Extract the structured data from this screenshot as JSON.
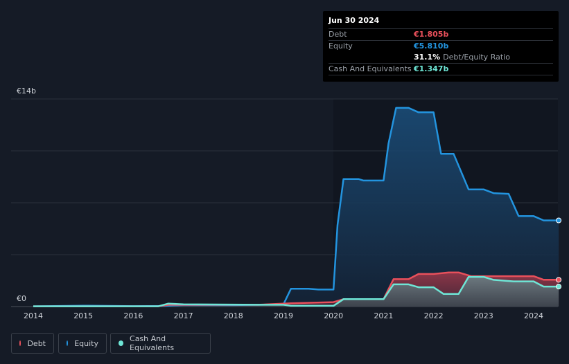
{
  "tooltip": {
    "date": "Jun 30 2024",
    "debt_label": "Debt",
    "debt_value": "€1.805b",
    "equity_label": "Equity",
    "equity_value": "€5.810b",
    "ratio_value": "31.1%",
    "ratio_label": "Debt/Equity Ratio",
    "cash_label": "Cash And Equivalents",
    "cash_value": "€1.347b"
  },
  "legend": {
    "debt": "Debt",
    "equity": "Equity",
    "cash": "Cash And Equivalents"
  },
  "colors": {
    "debt": "#e8505b",
    "equity": "#2394df",
    "cash": "#6ee6d6",
    "background": "#151b26"
  },
  "chart_data": {
    "type": "area",
    "y_axis_labels": [
      "€14b",
      "€0"
    ],
    "ylim": [
      0,
      14
    ],
    "y_unit": "€b",
    "x_ticks": [
      "2014",
      "2015",
      "2016",
      "2017",
      "2018",
      "2019",
      "2020",
      "2021",
      "2022",
      "2023",
      "2024"
    ],
    "xlim": [
      2014.0,
      2024.5
    ],
    "grid": true,
    "series": [
      {
        "name": "Equity",
        "points": [
          [
            2014.0,
            0.02
          ],
          [
            2015.0,
            0.06
          ],
          [
            2016.0,
            0.03
          ],
          [
            2016.6,
            0.04
          ],
          [
            2017.0,
            0.1
          ],
          [
            2018.0,
            0.1
          ],
          [
            2018.5,
            0.12
          ],
          [
            2019.0,
            0.15
          ],
          [
            2019.15,
            1.2
          ],
          [
            2019.5,
            1.2
          ],
          [
            2019.7,
            1.15
          ],
          [
            2020.0,
            1.15
          ],
          [
            2020.08,
            5.5
          ],
          [
            2020.2,
            8.6
          ],
          [
            2020.5,
            8.6
          ],
          [
            2020.6,
            8.5
          ],
          [
            2021.0,
            8.5
          ],
          [
            2021.1,
            11.0
          ],
          [
            2021.25,
            13.4
          ],
          [
            2021.5,
            13.4
          ],
          [
            2021.7,
            13.1
          ],
          [
            2022.0,
            13.1
          ],
          [
            2022.15,
            10.3
          ],
          [
            2022.4,
            10.3
          ],
          [
            2022.7,
            7.9
          ],
          [
            2023.0,
            7.9
          ],
          [
            2023.2,
            7.65
          ],
          [
            2023.5,
            7.6
          ],
          [
            2023.7,
            6.1
          ],
          [
            2024.0,
            6.1
          ],
          [
            2024.2,
            5.81
          ],
          [
            2024.5,
            5.81
          ]
        ]
      },
      {
        "name": "Debt",
        "points": [
          [
            2014.0,
            0.02
          ],
          [
            2016.5,
            0.02
          ],
          [
            2016.7,
            0.12
          ],
          [
            2017.0,
            0.12
          ],
          [
            2018.5,
            0.12
          ],
          [
            2019.0,
            0.2
          ],
          [
            2019.15,
            0.22
          ],
          [
            2020.0,
            0.3
          ],
          [
            2020.2,
            0.5
          ],
          [
            2021.0,
            0.5
          ],
          [
            2021.2,
            1.85
          ],
          [
            2021.5,
            1.85
          ],
          [
            2021.7,
            2.2
          ],
          [
            2022.0,
            2.2
          ],
          [
            2022.3,
            2.3
          ],
          [
            2022.5,
            2.3
          ],
          [
            2022.75,
            2.05
          ],
          [
            2024.0,
            2.05
          ],
          [
            2024.2,
            1.805
          ],
          [
            2024.5,
            1.805
          ]
        ]
      },
      {
        "name": "Cash And Equivalents",
        "points": [
          [
            2014.0,
            0.02
          ],
          [
            2016.5,
            0.02
          ],
          [
            2016.7,
            0.2
          ],
          [
            2017.0,
            0.15
          ],
          [
            2018.5,
            0.12
          ],
          [
            2019.0,
            0.12
          ],
          [
            2019.15,
            0.05
          ],
          [
            2020.0,
            0.05
          ],
          [
            2020.2,
            0.5
          ],
          [
            2021.0,
            0.5
          ],
          [
            2021.2,
            1.5
          ],
          [
            2021.5,
            1.5
          ],
          [
            2021.7,
            1.3
          ],
          [
            2022.0,
            1.3
          ],
          [
            2022.2,
            0.85
          ],
          [
            2022.5,
            0.85
          ],
          [
            2022.7,
            2.0
          ],
          [
            2023.0,
            2.0
          ],
          [
            2023.2,
            1.8
          ],
          [
            2023.6,
            1.7
          ],
          [
            2024.0,
            1.7
          ],
          [
            2024.2,
            1.347
          ],
          [
            2024.5,
            1.347
          ]
        ]
      }
    ]
  }
}
